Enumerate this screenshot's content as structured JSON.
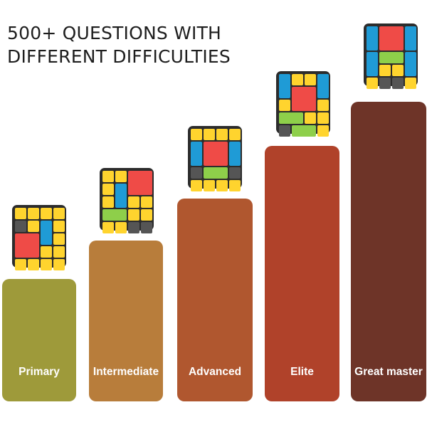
{
  "headline": {
    "line1": "500+ QUESTIONS WITH",
    "line2": "DIFFERENT DIFFICULTIES"
  },
  "levels": [
    {
      "label": "Primary",
      "color": "#9e9a3a"
    },
    {
      "label": "Intermediate",
      "color": "#b87d3b"
    },
    {
      "label": "Advanced",
      "color": "#b0572f"
    },
    {
      "label": "Elite",
      "color": "#b0422a"
    },
    {
      "label": "Great master",
      "color": "#6e3428"
    }
  ],
  "block_colors": {
    "yellow": "#ffd42e",
    "blue": "#1f9bd6",
    "red": "#ef4b47",
    "green": "#8ecf4a",
    "gray": "#555555"
  }
}
